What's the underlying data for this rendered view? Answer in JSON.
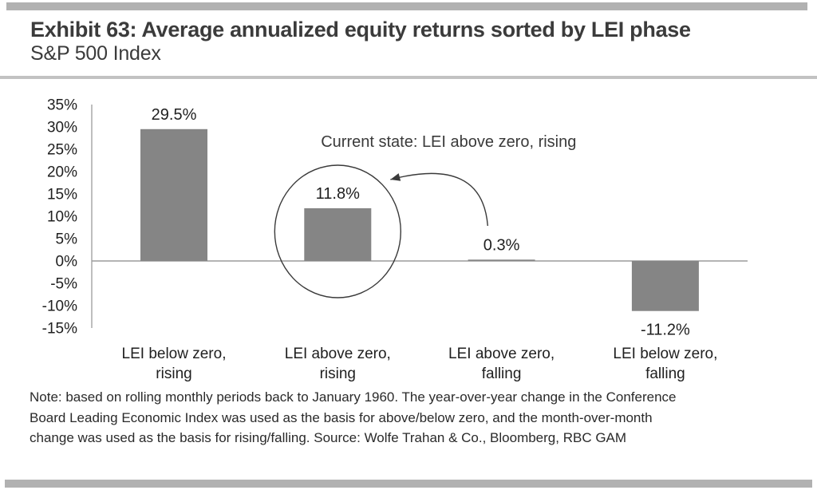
{
  "header": {
    "title": "Exhibit 63: Average annualized equity returns sorted by LEI phase",
    "subtitle": "S&P 500 Index"
  },
  "chart_data": {
    "type": "bar",
    "title": "Exhibit 63: Average annualized equity returns sorted by LEI phase",
    "subtitle": "S&P 500 Index",
    "categories": [
      "LEI below zero, rising",
      "LEI above zero, rising",
      "LEI above zero, falling",
      "LEI below zero, falling"
    ],
    "values": [
      29.5,
      11.8,
      0.3,
      -11.2
    ],
    "value_labels": [
      "29.5%",
      "11.8%",
      "0.3%",
      "-11.2%"
    ],
    "xlabel": "",
    "ylabel": "",
    "ylim": [
      -15,
      35
    ],
    "ytick_step": 5,
    "ytick_labels": [
      "35%",
      "30%",
      "25%",
      "20%",
      "15%",
      "10%",
      "5%",
      "0%",
      "-5%",
      "-10%",
      "-15%"
    ],
    "grid": false,
    "legend": null,
    "bar_color": "#858585",
    "axis_color": "#9c9c9c",
    "text_color": "#1f1f1f",
    "annotation_color": "#3a3a3a",
    "annotation": {
      "text": "Current state: LEI above zero, rising",
      "highlighted_category_index": 1
    }
  },
  "note": {
    "full_text": "Note: based on rolling monthly periods back to January 1960. The year-over-year change in the Conference Board Leading Economic Index was used as the basis for above/below zero, and the month-over-month change was used as the basis for rising/falling. Source: Wolfe Trahan & Co., Bloomberg, RBC GAM",
    "lines": [
      "Note: based on rolling monthly periods back to January 1960. The year-over-year change in the Conference",
      "Board Leading Economic Index was used as the basis for above/below zero, and the month-over-month",
      "change was used as the basis for rising/falling. Source: Wolfe Trahan & Co., Bloomberg, RBC GAM"
    ]
  }
}
